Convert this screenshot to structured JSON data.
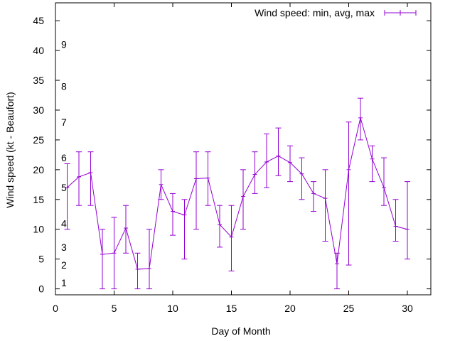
{
  "chart_data": {
    "type": "line",
    "title": "",
    "xlabel": "Day of Month",
    "ylabel": "Wind speed (kt - Beaufort)",
    "xlim": [
      0,
      32
    ],
    "ylim": [
      -1,
      48
    ],
    "grid": false,
    "legend_position": "top-right",
    "x_ticks": [
      0,
      5,
      10,
      15,
      20,
      25,
      30
    ],
    "y_ticks": [
      0,
      5,
      10,
      15,
      20,
      25,
      30,
      35,
      40,
      45
    ],
    "x_tick_labels": [
      "0",
      "5",
      "10",
      "15",
      "20",
      "25",
      "30"
    ],
    "y_tick_labels": [
      "0",
      "5",
      "10",
      "15",
      "20",
      "25",
      "30",
      "35",
      "40",
      "45"
    ],
    "beaufort_labels": [
      {
        "label": "1",
        "y": 1
      },
      {
        "label": "2",
        "y": 4
      },
      {
        "label": "3",
        "y": 7
      },
      {
        "label": "4",
        "y": 11
      },
      {
        "label": "5",
        "y": 17
      },
      {
        "label": "6",
        "y": 22
      },
      {
        "label": "7",
        "y": 28
      },
      {
        "label": "8",
        "y": 34
      },
      {
        "label": "9",
        "y": 41
      }
    ],
    "series": [
      {
        "name": "Wind speed: min, avg, max",
        "color": "#9400d3",
        "x": [
          1,
          2,
          3,
          4,
          5,
          6,
          7,
          8,
          9,
          10,
          11,
          12,
          13,
          14,
          15,
          16,
          17,
          18,
          19,
          20,
          21,
          22,
          23,
          24,
          25,
          26,
          27,
          28,
          29,
          30
        ],
        "avg": [
          17.0,
          18.8,
          19.5,
          5.8,
          6.0,
          10.2,
          3.3,
          3.4,
          17.5,
          13.0,
          12.4,
          18.5,
          18.6,
          10.8,
          8.7,
          15.5,
          19.2,
          21.3,
          22.3,
          21.2,
          19.3,
          16.0,
          15.2,
          4.2,
          20.0,
          28.7,
          21.8,
          17.0,
          10.5,
          10.0
        ],
        "min": [
          10,
          14,
          14,
          0,
          0,
          6,
          0,
          0,
          15,
          9,
          5,
          10,
          14,
          7,
          3,
          10,
          16,
          17,
          19,
          18,
          15,
          13,
          8,
          0,
          4,
          25,
          18,
          14,
          8,
          5
        ],
        "max": [
          21,
          23,
          23,
          10,
          12,
          14,
          6,
          10,
          20,
          16,
          15,
          23,
          23,
          14,
          14,
          20,
          23,
          26,
          27,
          24,
          22,
          18,
          20,
          6,
          28,
          32,
          24,
          22,
          15,
          18
        ]
      }
    ]
  }
}
